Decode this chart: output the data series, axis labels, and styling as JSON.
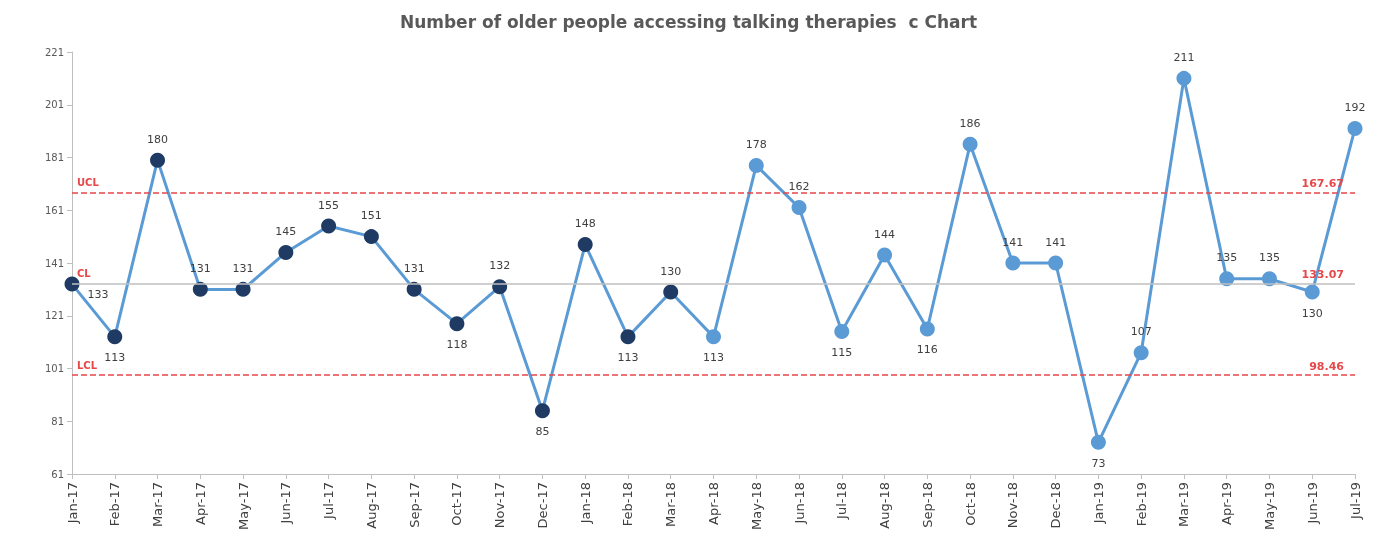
{
  "chart_data": {
    "type": "line",
    "title": "Number of older people accessing talking therapies  c Chart",
    "categories": [
      "Jan-17",
      "Feb-17",
      "Mar-17",
      "Apr-17",
      "May-17",
      "Jun-17",
      "Jul-17",
      "Aug-17",
      "Sep-17",
      "Oct-17",
      "Nov-17",
      "Dec-17",
      "Jan-18",
      "Feb-18",
      "Mar-18",
      "Apr-18",
      "May-18",
      "Jun-18",
      "Jul-18",
      "Aug-18",
      "Sep-18",
      "Oct-18",
      "Nov-18",
      "Dec-18",
      "Jan-19",
      "Feb-19",
      "Mar-19",
      "Apr-19",
      "May-19",
      "Jun-19",
      "Jul-19"
    ],
    "series": [
      {
        "color": "#5b9bd5",
        "values": [
          133,
          113,
          180,
          131,
          131,
          145,
          155,
          151,
          131,
          118,
          132,
          85,
          148,
          113,
          130,
          113,
          178,
          162,
          115,
          144,
          116,
          186,
          141,
          141,
          73,
          107,
          211,
          135,
          135,
          130,
          192
        ],
        "colors": [
          "#1f3b63",
          "#1f3b63",
          "#1f3b63",
          "#1f3b63",
          "#1f3b63",
          "#1f3b63",
          "#1f3b63",
          "#1f3b63",
          "#1f3b63",
          "#1f3b63",
          "#1f3b63",
          "#1f3b63",
          "#1f3b63",
          "#1f3b63",
          "#1f3b63",
          "#5b9bd5",
          "#5b9bd5",
          "#5b9bd5",
          "#5b9bd5",
          "#5b9bd5",
          "#5b9bd5",
          "#5b9bd5",
          "#5b9bd5",
          "#5b9bd5",
          "#5b9bd5",
          "#5b9bd5",
          "#5b9bd5",
          "#5b9bd5",
          "#5b9bd5",
          "#5b9bd5",
          "#5b9bd5"
        ]
      }
    ],
    "ylim": [
      61,
      221
    ],
    "yticks": [
      61,
      81,
      101,
      121,
      141,
      161,
      181,
      201,
      221
    ],
    "ref_lines": [
      {
        "axis": "y",
        "value": 167.67,
        "label": "UCL",
        "color": "#e8474a",
        "line_style": "dashed"
      },
      {
        "axis": "y",
        "value": 133.07,
        "label": "CL",
        "color": "#bfbfbf",
        "line_style": "solid"
      },
      {
        "axis": "y",
        "value": 98.46,
        "label": "LCL",
        "color": "#e8474a",
        "line_style": "dashed"
      }
    ],
    "annotations": [
      {
        "text": "167.67",
        "x": "Jul-19",
        "y": 167.67
      },
      {
        "text": "133.07",
        "x": "Jul-19",
        "y": 133.07
      },
      {
        "text": "98.46",
        "x": "Jul-19",
        "y": 98.46
      }
    ],
    "data_labels": true,
    "marker": "circle",
    "line_style": "solid",
    "grid": false
  }
}
